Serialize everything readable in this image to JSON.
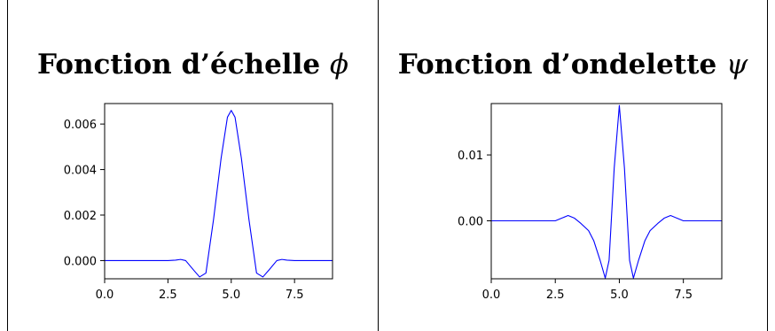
{
  "panels": [
    {
      "title_text": "Fonction d’échelle",
      "title_symbol": "ϕ"
    },
    {
      "title_text": "Fonction d’ondelette",
      "title_symbol": "ψ"
    }
  ],
  "chart_data": [
    {
      "type": "line",
      "xlim": [
        0,
        9
      ],
      "ylim": [
        -0.0008,
        0.0069
      ],
      "x_ticks": [
        0.0,
        2.5,
        5.0,
        7.5
      ],
      "x_tick_labels": [
        "0.0",
        "2.5",
        "5.0",
        "7.5"
      ],
      "y_ticks": [
        0.0,
        0.002,
        0.004,
        0.006
      ],
      "y_tick_labels": [
        "0.000",
        "0.002",
        "0.004",
        "0.006"
      ],
      "grid": false,
      "series": [
        {
          "color": "#0000ff",
          "x": [
            0,
            2.5,
            2.8,
            3.0,
            3.2,
            3.5,
            3.75,
            4.0,
            4.3,
            4.6,
            4.85,
            5.0,
            5.15,
            5.4,
            5.7,
            6.0,
            6.25,
            6.5,
            6.8,
            7.0,
            7.2,
            7.5,
            9
          ],
          "y": [
            0,
            0,
            2e-05,
            5e-05,
            0.0,
            -0.0004,
            -0.00072,
            -0.00055,
            0.0018,
            0.0045,
            0.0063,
            0.0066,
            0.0063,
            0.0045,
            0.0018,
            -0.00055,
            -0.00072,
            -0.0004,
            0.0,
            5e-05,
            2e-05,
            0,
            0
          ]
        }
      ]
    },
    {
      "type": "line",
      "xlim": [
        0,
        9
      ],
      "ylim": [
        -0.0088,
        0.0178
      ],
      "x_ticks": [
        0.0,
        2.5,
        5.0,
        7.5
      ],
      "x_tick_labels": [
        "0.0",
        "2.5",
        "5.0",
        "7.5"
      ],
      "y_ticks": [
        0.0,
        0.01
      ],
      "y_tick_labels": [
        "0.00",
        "0.01"
      ],
      "grid": false,
      "series": [
        {
          "color": "#0000ff",
          "x": [
            0,
            2.5,
            2.75,
            3.0,
            3.25,
            3.5,
            3.8,
            4.0,
            4.25,
            4.45,
            4.6,
            4.8,
            5.0,
            5.2,
            5.4,
            5.55,
            5.75,
            6.0,
            6.2,
            6.5,
            6.75,
            7.0,
            7.25,
            7.5,
            9
          ],
          "y": [
            0,
            0,
            0.0004,
            0.0008,
            0.0004,
            -0.0004,
            -0.0015,
            -0.003,
            -0.006,
            -0.0087,
            -0.006,
            0.008,
            0.0175,
            0.008,
            -0.006,
            -0.0087,
            -0.006,
            -0.003,
            -0.0015,
            -0.0004,
            0.0004,
            0.0008,
            0.0004,
            0,
            0
          ]
        }
      ]
    }
  ]
}
